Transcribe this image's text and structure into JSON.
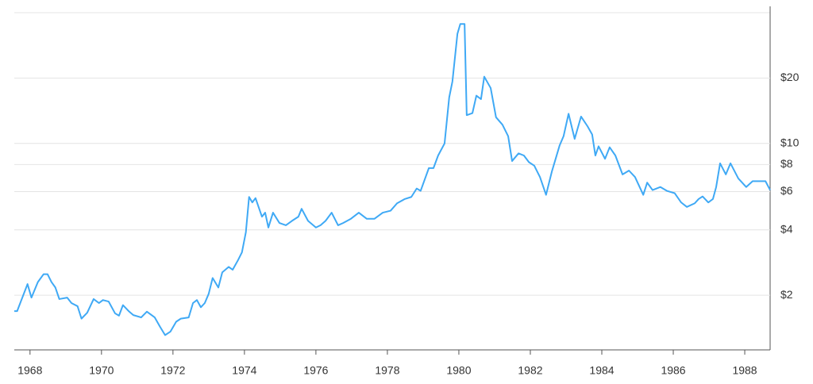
{
  "chart_data": {
    "type": "line",
    "log_scale": true,
    "grid": true,
    "y_axis_side": "right",
    "x": [
      1967.56,
      1967.64,
      1967.93,
      1968.04,
      1968.22,
      1968.38,
      1968.49,
      1968.6,
      1968.71,
      1968.82,
      1969.04,
      1969.16,
      1969.33,
      1969.44,
      1969.6,
      1969.78,
      1969.93,
      1970.04,
      1970.2,
      1970.38,
      1970.49,
      1970.6,
      1970.76,
      1970.89,
      1971.11,
      1971.27,
      1971.49,
      1971.64,
      1971.78,
      1971.93,
      1972.09,
      1972.22,
      1972.44,
      1972.56,
      1972.67,
      1972.78,
      1972.89,
      1973.0,
      1973.11,
      1973.27,
      1973.38,
      1973.56,
      1973.67,
      1973.82,
      1973.93,
      1974.04,
      1974.13,
      1974.22,
      1974.31,
      1974.49,
      1974.58,
      1974.67,
      1974.8,
      1974.98,
      1975.16,
      1975.33,
      1975.51,
      1975.6,
      1975.78,
      1976.0,
      1976.13,
      1976.27,
      1976.44,
      1976.62,
      1976.76,
      1976.98,
      1977.2,
      1977.42,
      1977.64,
      1977.87,
      1978.09,
      1978.27,
      1978.49,
      1978.67,
      1978.82,
      1978.93,
      1979.16,
      1979.29,
      1979.42,
      1979.6,
      1979.73,
      1979.82,
      1979.96,
      1980.04,
      1980.16,
      1980.22,
      1980.38,
      1980.49,
      1980.62,
      1980.71,
      1980.89,
      1981.04,
      1981.22,
      1981.38,
      1981.49,
      1981.67,
      1981.82,
      1981.96,
      1982.11,
      1982.27,
      1982.44,
      1982.6,
      1982.82,
      1982.93,
      1983.07,
      1983.24,
      1983.42,
      1983.6,
      1983.73,
      1983.82,
      1983.91,
      1984.09,
      1984.22,
      1984.38,
      1984.58,
      1984.76,
      1984.93,
      1985.16,
      1985.27,
      1985.42,
      1985.64,
      1985.82,
      1986.04,
      1986.22,
      1986.38,
      1986.6,
      1986.71,
      1986.82,
      1986.98,
      1987.11,
      1987.2,
      1987.31,
      1987.47,
      1987.6,
      1987.82,
      1988.04,
      1988.22,
      1988.58,
      1988.71
    ],
    "series": [
      {
        "color": "#3fa9f5",
        "values": [
          1.69,
          1.69,
          2.25,
          1.95,
          2.3,
          2.5,
          2.5,
          2.3,
          2.17,
          1.92,
          1.95,
          1.84,
          1.78,
          1.56,
          1.66,
          1.92,
          1.84,
          1.9,
          1.87,
          1.65,
          1.61,
          1.8,
          1.69,
          1.62,
          1.58,
          1.68,
          1.58,
          1.43,
          1.31,
          1.36,
          1.51,
          1.56,
          1.58,
          1.84,
          1.9,
          1.76,
          1.84,
          2.03,
          2.4,
          2.17,
          2.55,
          2.7,
          2.62,
          2.9,
          3.15,
          3.9,
          5.67,
          5.35,
          5.6,
          4.6,
          4.8,
          4.1,
          4.8,
          4.3,
          4.2,
          4.4,
          4.6,
          5.0,
          4.4,
          4.1,
          4.2,
          4.4,
          4.8,
          4.2,
          4.3,
          4.5,
          4.8,
          4.5,
          4.5,
          4.8,
          4.9,
          5.3,
          5.55,
          5.67,
          6.2,
          6.05,
          7.7,
          7.7,
          8.8,
          10.0,
          16.3,
          19.3,
          32,
          35.5,
          35.5,
          13.5,
          13.8,
          16.6,
          16,
          20.3,
          18,
          13.2,
          12.2,
          10.8,
          8.3,
          9.0,
          8.8,
          8.2,
          7.9,
          7.0,
          5.8,
          7.4,
          9.8,
          10.8,
          13.7,
          10.5,
          13.3,
          12.0,
          11,
          8.8,
          9.7,
          8.5,
          9.6,
          8.8,
          7.2,
          7.5,
          7.0,
          5.8,
          6.6,
          6.1,
          6.3,
          6.05,
          5.9,
          5.35,
          5.1,
          5.3,
          5.55,
          5.7,
          5.35,
          5.55,
          6.3,
          8.1,
          7.2,
          8.1,
          6.9,
          6.3,
          6.7,
          6.7,
          6.1
        ]
      }
    ],
    "xlim": [
      1967.56,
      1988.71
    ],
    "xticks": [
      1968,
      1970,
      1972,
      1974,
      1976,
      1978,
      1980,
      1982,
      1984,
      1986,
      1988
    ],
    "ylim": [
      1.12,
      42.8
    ],
    "yticks": [
      {
        "value": 2,
        "label": "$2"
      },
      {
        "value": 4,
        "label": "$4"
      },
      {
        "value": 6,
        "label": "$6"
      },
      {
        "value": 8,
        "label": "$8"
      },
      {
        "value": 10,
        "label": "$10"
      },
      {
        "value": 20,
        "label": "$20"
      }
    ]
  }
}
